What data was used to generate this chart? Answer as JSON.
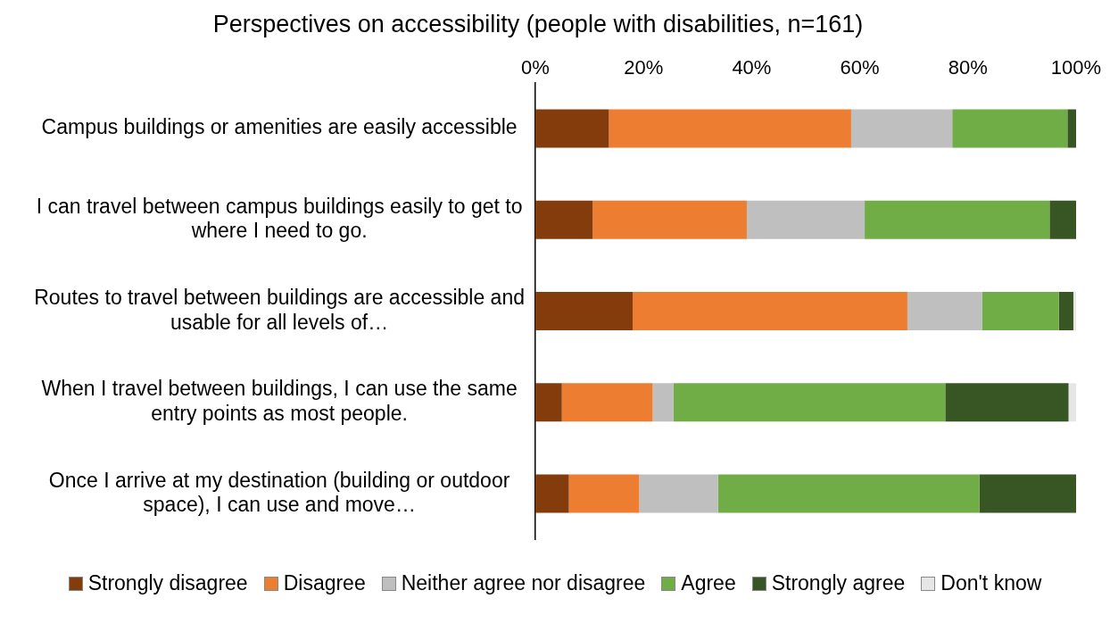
{
  "chart_data": {
    "type": "bar",
    "orientation": "horizontal",
    "stacked": true,
    "title": "Perspectives on accessibility (people with disabilities, n=161)",
    "categories": [
      "Campus buildings or amenities are easily accessible",
      "I can travel between campus buildings easily to get to where I need to go.",
      "Routes to travel between buildings are accessible and usable for all levels of…",
      "When I travel between buildings, I can use the same entry points as most people.",
      "Once I arrive at my destination (building or outdoor space), I can use and move…"
    ],
    "series": [
      {
        "name": "Strongly disagree",
        "color": "#843c0c",
        "values": [
          13.6,
          10.6,
          18.0,
          4.9,
          6.2
        ]
      },
      {
        "name": "Disagree",
        "color": "#ed7d31",
        "values": [
          44.8,
          28.5,
          50.8,
          16.8,
          13.0
        ]
      },
      {
        "name": "Neither agree nor disagree",
        "color": "#bfbfbf",
        "values": [
          18.7,
          21.8,
          13.8,
          3.8,
          14.6
        ]
      },
      {
        "name": "Agree",
        "color": "#70ad47",
        "values": [
          21.3,
          34.2,
          14.2,
          50.3,
          48.3
        ]
      },
      {
        "name": "Strongly agree",
        "color": "#375623",
        "values": [
          1.6,
          4.9,
          2.7,
          22.8,
          17.9
        ]
      },
      {
        "name": "Don't know",
        "color": "#e7e6e6",
        "values": [
          0,
          0,
          0.5,
          1.4,
          0
        ]
      }
    ],
    "xlim": [
      0,
      100
    ],
    "xticks": [
      {
        "value": 0,
        "label": "0%"
      },
      {
        "value": 20,
        "label": "20%"
      },
      {
        "value": 40,
        "label": "40%"
      },
      {
        "value": 60,
        "label": "60%"
      },
      {
        "value": 80,
        "label": "80%"
      },
      {
        "value": 100,
        "label": "100%"
      }
    ],
    "legend": "bottom"
  }
}
